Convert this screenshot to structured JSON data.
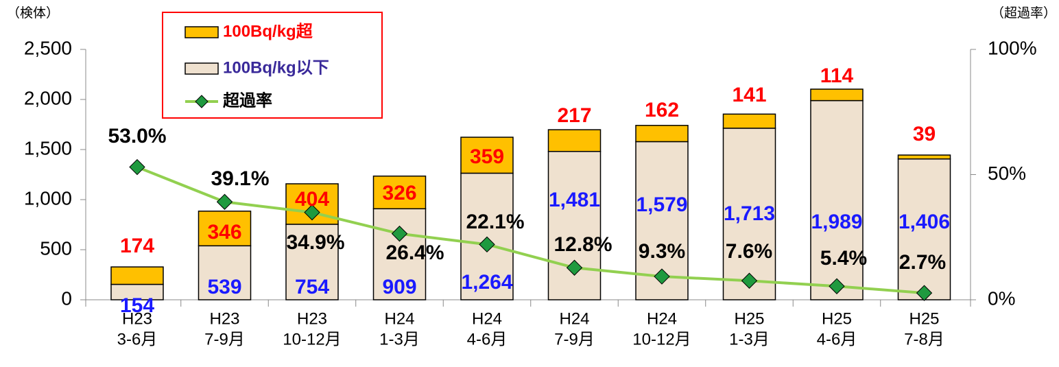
{
  "chart_data": {
    "type": "bar",
    "ylabel": "（検体）",
    "y2label": "（超過率）",
    "categories": [
      [
        "H23",
        "3-6月"
      ],
      [
        "H23",
        "7-9月"
      ],
      [
        "H23",
        "10-12月"
      ],
      [
        "H24",
        "1-3月"
      ],
      [
        "H24",
        "4-6月"
      ],
      [
        "H24",
        "7-9月"
      ],
      [
        "H24",
        "10-12月"
      ],
      [
        "H25",
        "1-3月"
      ],
      [
        "H25",
        "4-6月"
      ],
      [
        "H25",
        "7-8月"
      ]
    ],
    "series": [
      {
        "name": "100Bq/kg以下",
        "color": "#efe1cf",
        "label_color": "#1a1aff",
        "legend_color": "#3a2a9a",
        "values": [
          154,
          539,
          754,
          909,
          1264,
          1481,
          1579,
          1713,
          1989,
          1406
        ],
        "value_labels": [
          "154",
          "539",
          "754",
          "909",
          "1,264",
          "1,481",
          "1,579",
          "1,713",
          "1,989",
          "1,406"
        ]
      },
      {
        "name": "100Bq/kg超",
        "color": "#ffc000",
        "label_color": "#ff0000",
        "legend_color": "#ff0000",
        "values": [
          174,
          346,
          404,
          326,
          359,
          217,
          162,
          141,
          114,
          39
        ]
      },
      {
        "name": "超過率",
        "type": "line",
        "axis": "y2",
        "color": "#92d050",
        "marker_color": "#1f9a3f",
        "label_color": "#000000",
        "legend_color": "#000000",
        "values": [
          53.0,
          39.1,
          34.9,
          26.4,
          22.1,
          12.8,
          9.3,
          7.6,
          5.4,
          2.7
        ],
        "value_labels": [
          "53.0%",
          "39.1%",
          "34.9%",
          "26.4%",
          "22.1%",
          "12.8%",
          "9.3%",
          "7.6%",
          "5.4%",
          "2.7%"
        ]
      }
    ],
    "ylim": [
      0,
      2500
    ],
    "yticks": [
      0,
      500,
      {
        "value": 1000,
        "label": "1,000"
      },
      {
        "value": 1500,
        "label": "1,500"
      },
      {
        "value": 2000,
        "label": "2,000"
      },
      {
        "value": 2500,
        "label": "2,500"
      }
    ],
    "y2lim": [
      0,
      100
    ],
    "y2ticks": [
      {
        "value": 0,
        "label": "0%"
      },
      {
        "value": 50,
        "label": "50%"
      },
      {
        "value": 100,
        "label": "100%"
      }
    ],
    "legend": "top-left"
  }
}
